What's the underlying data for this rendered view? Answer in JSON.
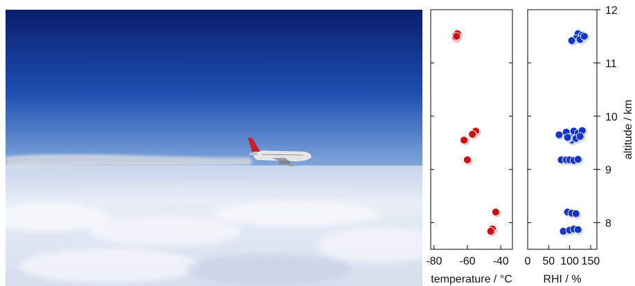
{
  "photo": {
    "subject": "aircraft-with-contrail",
    "colors": {
      "sky_top": "#0b1d6e",
      "sky_mid": "#1d4fb0",
      "sky_horizon": "#8fb2e0",
      "cloud": "#e8edf6",
      "cloud_shadow": "#c9d3e6",
      "fuselage": "#e6e6e6",
      "tail": "#c8202a"
    }
  },
  "chart_data": [
    {
      "type": "scatter",
      "xlabel": "temperature / °C",
      "ylabel": "",
      "xlim": [
        -82,
        -33
      ],
      "ylim": [
        7.5,
        12
      ],
      "xticks": [
        -80,
        -60,
        -40
      ],
      "xtick_labels": [
        "-80",
        "-60",
        "-40"
      ],
      "grid": false,
      "colors": {
        "marker": "#d01010",
        "marker_light": "#f3b8b8"
      },
      "series": [
        {
          "values": [
            {
              "x": -67,
              "y": 11.52
            },
            {
              "x": -66,
              "y": 11.55
            },
            {
              "x": -67,
              "y": 11.48
            },
            {
              "x": -66.5,
              "y": 11.5
            },
            {
              "x": -55,
              "y": 9.72
            },
            {
              "x": -57,
              "y": 9.66
            },
            {
              "x": -62,
              "y": 9.55
            },
            {
              "x": -60,
              "y": 9.18
            },
            {
              "x": -43,
              "y": 8.2
            },
            {
              "x": -45,
              "y": 7.88
            },
            {
              "x": -46,
              "y": 7.84
            }
          ]
        }
      ]
    },
    {
      "type": "scatter",
      "xlabel": "RHI / %",
      "ylabel": "altitude / km",
      "xlim": [
        0,
        165
      ],
      "ylim": [
        7.5,
        12
      ],
      "xticks": [
        0,
        50,
        100,
        150
      ],
      "xtick_labels": [
        "0",
        "50",
        "100",
        "150"
      ],
      "yticks": [
        8,
        9,
        10,
        11,
        12
      ],
      "ytick_labels": [
        "8",
        "9",
        "10",
        "11",
        "12"
      ],
      "grid": false,
      "colors": {
        "marker": "#1535c8",
        "marker_light": "#c9d3f5"
      },
      "series": [
        {
          "values": [
            {
              "x": 120,
              "y": 11.55
            },
            {
              "x": 130,
              "y": 11.52
            },
            {
              "x": 115,
              "y": 11.46
            },
            {
              "x": 125,
              "y": 11.44
            },
            {
              "x": 135,
              "y": 11.5
            },
            {
              "x": 105,
              "y": 11.42
            },
            {
              "x": 75,
              "y": 9.65
            },
            {
              "x": 92,
              "y": 9.7
            },
            {
              "x": 100,
              "y": 9.6
            },
            {
              "x": 110,
              "y": 9.72
            },
            {
              "x": 120,
              "y": 9.68
            },
            {
              "x": 130,
              "y": 9.73
            },
            {
              "x": 105,
              "y": 9.55
            },
            {
              "x": 115,
              "y": 9.58
            },
            {
              "x": 95,
              "y": 9.6
            },
            {
              "x": 125,
              "y": 9.62
            },
            {
              "x": 80,
              "y": 9.18
            },
            {
              "x": 92,
              "y": 9.18
            },
            {
              "x": 100,
              "y": 9.18
            },
            {
              "x": 110,
              "y": 9.17
            },
            {
              "x": 120,
              "y": 9.19
            },
            {
              "x": 95,
              "y": 8.2
            },
            {
              "x": 105,
              "y": 8.18
            },
            {
              "x": 115,
              "y": 8.17
            },
            {
              "x": 85,
              "y": 7.84
            },
            {
              "x": 100,
              "y": 7.86
            },
            {
              "x": 110,
              "y": 7.88
            },
            {
              "x": 120,
              "y": 7.87
            }
          ]
        }
      ]
    }
  ]
}
